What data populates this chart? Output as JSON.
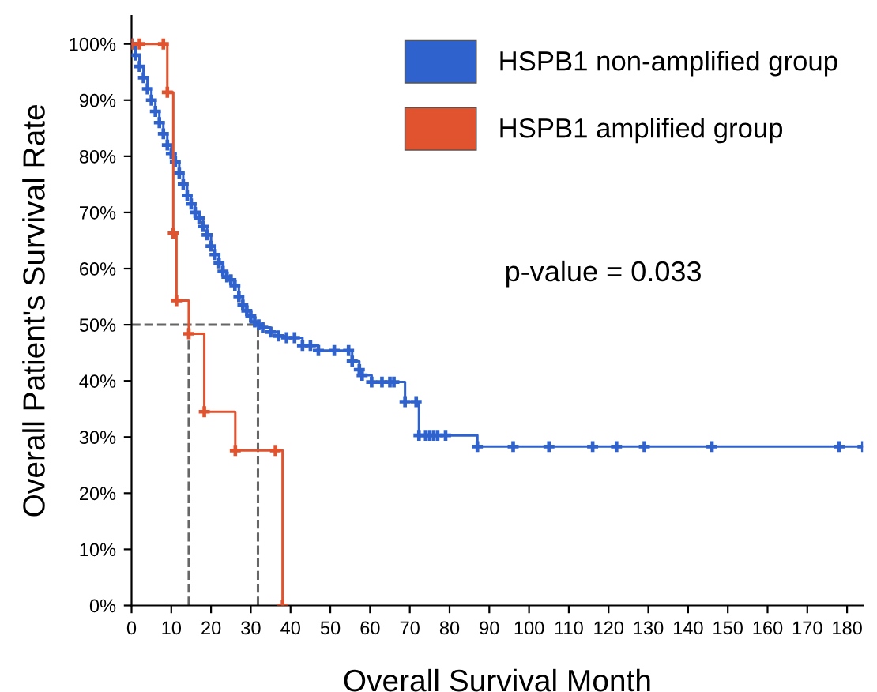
{
  "chart_data": {
    "type": "step",
    "xlabel": "Overall Survival Month",
    "ylabel": "Overall Patient's Survival Rate",
    "series": [
      {
        "name": "HSPB1 non-amplified group",
        "color": "#2f62cc",
        "x": [
          0,
          1,
          2,
          3,
          4,
          5,
          6,
          7,
          8,
          9,
          10,
          11,
          12,
          13,
          14,
          15,
          16,
          17,
          18,
          19,
          20,
          21,
          22,
          23,
          24,
          25,
          26,
          27,
          28,
          29,
          30,
          31,
          32,
          33,
          35,
          37,
          39,
          41,
          43,
          45,
          47,
          51,
          54.6,
          55.5,
          57.3,
          58,
          60.4,
          63,
          65,
          66,
          68.8,
          71.6,
          72.3,
          74,
          75,
          76,
          77,
          79,
          87,
          96,
          105,
          116,
          122,
          129,
          146,
          178,
          184
        ],
        "values": [
          100,
          98,
          96,
          94,
          92,
          90,
          88,
          86,
          84,
          82,
          80.5,
          79,
          77,
          75,
          73,
          71.5,
          70,
          69,
          67.5,
          66,
          64,
          62.5,
          61,
          59.5,
          58.5,
          58,
          57,
          55,
          53.5,
          52.5,
          51.5,
          50.5,
          50,
          49.5,
          48.7,
          48,
          47.7,
          47.7,
          46.3,
          46.3,
          45.4,
          45.4,
          45.4,
          43.5,
          42,
          41,
          39.8,
          39.8,
          39.8,
          39.8,
          36.3,
          36.3,
          30.3,
          30.3,
          30.3,
          30.3,
          30.3,
          30.3,
          28.3,
          28.3,
          28.3,
          28.3,
          28.3,
          28.3,
          28.3,
          28.3,
          28.3
        ]
      },
      {
        "name": "HSPB1 amplified group",
        "color": "#e0532e",
        "x": [
          0,
          2,
          8,
          9,
          10.5,
          11.3,
          14.4,
          18.3,
          26.1,
          36.2,
          38
        ],
        "values": [
          100,
          100,
          100,
          91.4,
          66.3,
          54.3,
          48.4,
          34.5,
          27.6,
          27.6,
          0
        ]
      }
    ],
    "marker": "cross",
    "xlim": [
      0,
      184
    ],
    "xticks": [
      0,
      10,
      20,
      30,
      40,
      50,
      60,
      70,
      80,
      90,
      100,
      110,
      120,
      130,
      140,
      150,
      160,
      170,
      180
    ],
    "ylim": [
      0,
      105
    ],
    "yticks": [
      {
        "value": 0,
        "label": "0%"
      },
      {
        "value": 10,
        "label": "10%"
      },
      {
        "value": 20,
        "label": "20%"
      },
      {
        "value": 30,
        "label": "30%"
      },
      {
        "value": 40,
        "label": "40%"
      },
      {
        "value": 50,
        "label": "50%"
      },
      {
        "value": 60,
        "label": "60%"
      },
      {
        "value": 70,
        "label": "70%"
      },
      {
        "value": 80,
        "label": "80%"
      },
      {
        "value": 90,
        "label": "90%"
      },
      {
        "value": 100,
        "label": "100%"
      }
    ],
    "ref_lines": [
      {
        "axis": "y",
        "value": 50,
        "color": "#666666",
        "line_style": "dashed"
      },
      {
        "axis": "x",
        "value": 14.4,
        "color": "#666666",
        "line_style": "dashed"
      },
      {
        "axis": "x",
        "value": 31.8,
        "color": "#666666",
        "line_style": "dashed"
      }
    ],
    "annotations": [
      "p-value = 0.033"
    ],
    "legend": "top right",
    "grid": false
  }
}
